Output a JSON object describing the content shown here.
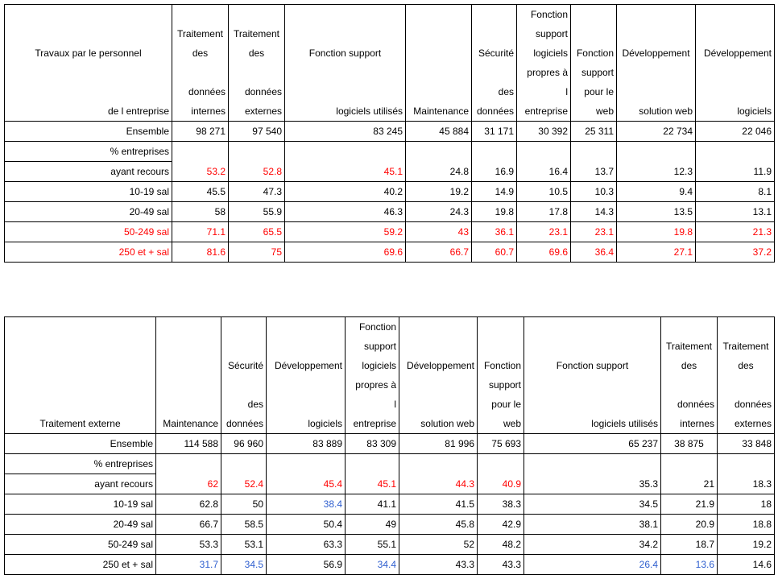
{
  "palette": {
    "red": "#ff0000",
    "blue": "#2f5fcf",
    "black": "#000000"
  },
  "tables": [
    {
      "id": "t1",
      "name": "travaux-personnel-table",
      "headers": [
        {
          "top": [
            "Travaux par le personnel"
          ],
          "top_align": "c",
          "bottom": [
            "de l entreprise"
          ]
        },
        {
          "top": [
            "Traitement",
            "des"
          ],
          "top_align": "c",
          "bottom": [
            "données",
            "internes"
          ]
        },
        {
          "top": [
            "Traitement",
            "des"
          ],
          "top_align": "c",
          "bottom": [
            "données",
            "externes"
          ]
        },
        {
          "top": [
            "Fonction support"
          ],
          "top_align": "c",
          "bottom": [
            "logiciels utilisés"
          ]
        },
        {
          "merged": [
            "Maintenance"
          ]
        },
        {
          "top": [
            "Sécurité"
          ],
          "bottom": [
            "des",
            "données"
          ]
        },
        {
          "top": [
            "Fonction",
            "support",
            "logiciels"
          ],
          "bottom": [
            "propres à",
            "l",
            "entreprise"
          ]
        },
        {
          "merged": [
            "Fonction",
            "support",
            "pour le",
            "web"
          ]
        },
        {
          "top": [
            "Développement"
          ],
          "top_align": "c",
          "bottom": [
            "solution web"
          ]
        },
        {
          "top": [
            "Développement"
          ],
          "bottom": [
            "logiciels"
          ]
        }
      ],
      "ensemble": {
        "label": "Ensemble",
        "values": [
          "98 271",
          "97 540",
          "83 245",
          "45 884",
          "31 171",
          "30 392",
          "25 311",
          "22 734",
          "22 046"
        ]
      },
      "recours": {
        "label1": "% entreprises",
        "label2": "ayant recours",
        "values": [
          "53.2",
          "52.8",
          "45.1",
          "24.8",
          "16.9",
          "16.4",
          "13.7",
          "12.3",
          "11.9"
        ],
        "colors": [
          "red",
          "red",
          "red",
          "",
          "",
          "",
          "",
          "",
          ""
        ]
      },
      "rows": [
        {
          "label": "10-19 sal",
          "values": [
            "45.5",
            "47.3",
            "40.2",
            "19.2",
            "14.9",
            "10.5",
            "10.3",
            "9.4",
            "8.1"
          ],
          "colors": [
            "",
            "",
            "",
            "",
            "",
            "",
            "",
            "",
            ""
          ],
          "label_color": ""
        },
        {
          "label": "20-49 sal",
          "values": [
            "58",
            "55.9",
            "46.3",
            "24.3",
            "19.8",
            "17.8",
            "14.3",
            "13.5",
            "13.1"
          ],
          "colors": [
            "",
            "",
            "",
            "",
            "",
            "",
            "",
            "",
            ""
          ],
          "label_color": ""
        },
        {
          "label": "50-249 sal",
          "values": [
            "71.1",
            "65.5",
            "59.2",
            "43",
            "36.1",
            "23.1",
            "23.1",
            "19.8",
            "21.3"
          ],
          "colors": [
            "red",
            "red",
            "red",
            "red",
            "red",
            "red",
            "red",
            "red",
            "red"
          ],
          "label_color": "red"
        },
        {
          "label": "250 et + sal",
          "values": [
            "81.6",
            "75",
            "69.6",
            "66.7",
            "60.7",
            "69.6",
            "36.4",
            "27.1",
            "37.2"
          ],
          "colors": [
            "red",
            "red",
            "red",
            "red",
            "red",
            "red",
            "red",
            "red",
            "red"
          ],
          "label_color": "red"
        }
      ]
    },
    {
      "id": "t2",
      "name": "traitement-externe-table",
      "headers": [
        {
          "merged": [
            "Traitement externe"
          ],
          "align": "c"
        },
        {
          "merged": [
            "Maintenance"
          ]
        },
        {
          "top": [
            "Sécurité"
          ],
          "bottom": [
            "des",
            "données"
          ]
        },
        {
          "top": [
            "Développement"
          ],
          "bottom": [
            "logiciels"
          ]
        },
        {
          "top": [
            "Fonction",
            "support",
            "logiciels"
          ],
          "bottom": [
            "propres à",
            "l",
            "entreprise"
          ]
        },
        {
          "top": [
            "Développement"
          ],
          "bottom": [
            "solution web"
          ]
        },
        {
          "merged": [
            "Fonction",
            "support",
            "pour le",
            "web"
          ]
        },
        {
          "top": [
            "Fonction support"
          ],
          "top_align": "c",
          "bottom": [
            "logiciels utilisés"
          ]
        },
        {
          "top": [
            "Traitement",
            "des"
          ],
          "top_align": "c",
          "bottom": [
            "données",
            "internes"
          ]
        },
        {
          "top": [
            "Traitement",
            "des"
          ],
          "top_align": "c",
          "bottom": [
            "données",
            "externes"
          ]
        }
      ],
      "ensemble": {
        "label": "Ensemble",
        "values": [
          "114 588",
          "96 960",
          "83 889",
          "83 309",
          "81 996",
          "75 693",
          "65 237",
          "38 875",
          "33 848"
        ]
      },
      "recours": {
        "label1": "% entreprises",
        "label2": "ayant recours",
        "values": [
          "62",
          "52.4",
          "45.4",
          "45.1",
          "44.3",
          "40.9",
          "35.3",
          "21",
          "18.3"
        ],
        "colors": [
          "red",
          "red",
          "red",
          "red",
          "red",
          "red",
          "",
          "",
          ""
        ]
      },
      "rows": [
        {
          "label": "10-19 sal",
          "values": [
            "62.8",
            "50",
            "38.4",
            "41.1",
            "41.5",
            "38.3",
            "34.5",
            "21.9",
            "18"
          ],
          "colors": [
            "",
            "",
            "blue",
            "",
            "",
            "",
            "",
            "",
            ""
          ],
          "label_color": ""
        },
        {
          "label": "20-49 sal",
          "values": [
            "66.7",
            "58.5",
            "50.4",
            "49",
            "45.8",
            "42.9",
            "38.1",
            "20.9",
            "18.8"
          ],
          "colors": [
            "",
            "",
            "",
            "",
            "",
            "",
            "",
            "",
            ""
          ],
          "label_color": ""
        },
        {
          "label": "50-249 sal",
          "values": [
            "53.3",
            "53.1",
            "63.3",
            "55.1",
            "52",
            "48.2",
            "34.2",
            "18.7",
            "19.2"
          ],
          "colors": [
            "",
            "",
            "",
            "",
            "",
            "",
            "",
            "",
            ""
          ],
          "label_color": ""
        },
        {
          "label": "250 et + sal",
          "values": [
            "31.7",
            "34.5",
            "56.9",
            "34.4",
            "43.3",
            "43.3",
            "26.4",
            "13.6",
            "14.6"
          ],
          "colors": [
            "blue",
            "blue",
            "",
            "blue",
            "",
            "",
            "blue",
            "blue",
            ""
          ],
          "label_color": ""
        }
      ]
    }
  ]
}
